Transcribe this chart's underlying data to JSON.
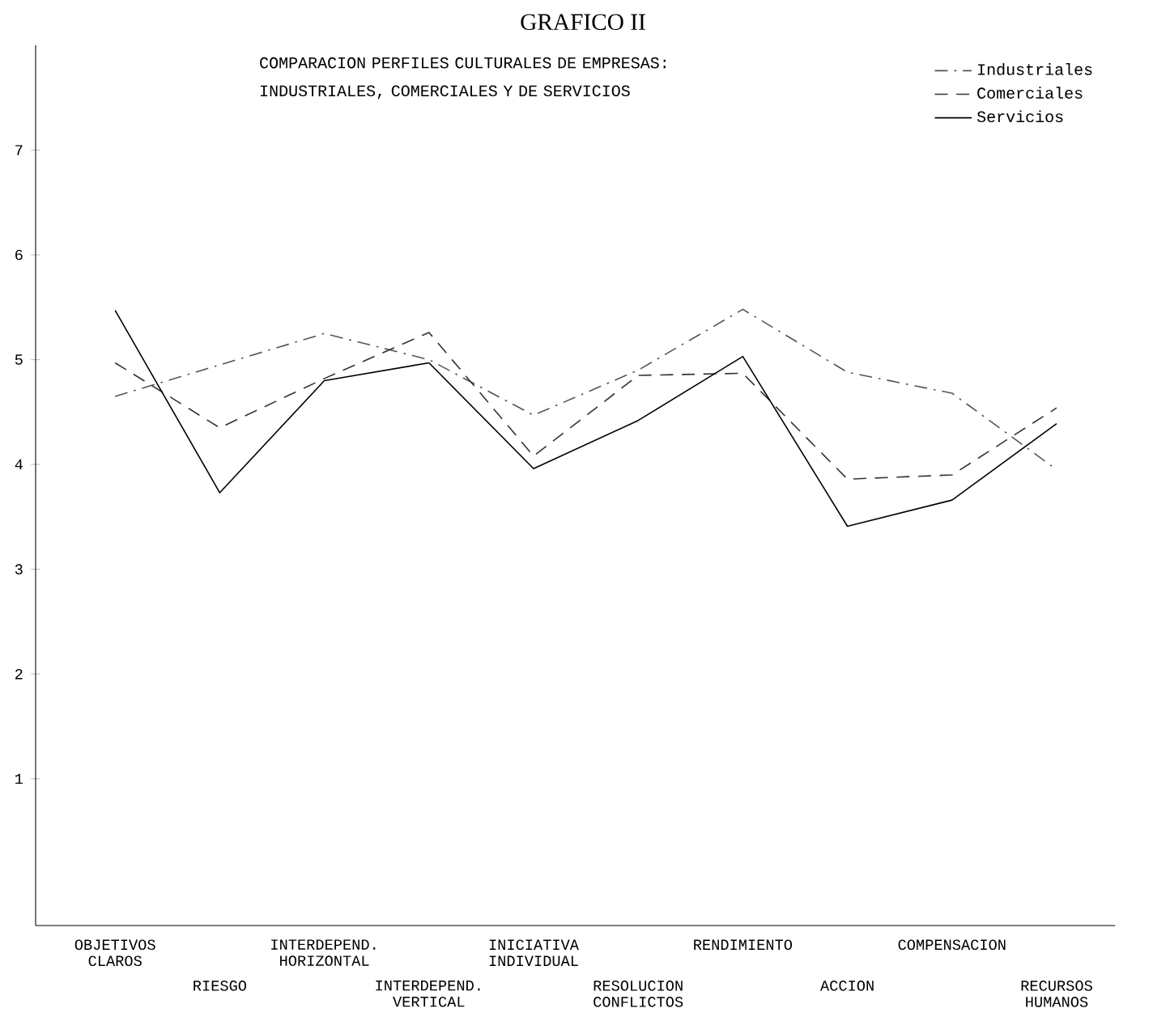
{
  "chart_data": {
    "type": "line",
    "title": "GRAFICO II",
    "subtitle": "COMPARACION PERFILES CULTURALES DE EMPRESAS: INDUSTRIALES, COMERCIALES Y DE SERVICIOS",
    "categories": [
      "OBJETIVOS CLAROS",
      "RIESGO",
      "INTERDEPEND. HORIZONTAL",
      "INTERDEPEND. VERTICAL",
      "INICIATIVA INDIVIDUAL",
      "RESOLUCION CONFLICTOS",
      "RENDIMIENTO",
      "ACCION",
      "COMPENSACION",
      "RECURSOS HUMANOS"
    ],
    "series": [
      {
        "name": "Industriales",
        "color": "#555555",
        "line_style": "dashdot",
        "values": [
          4.65,
          4.95,
          5.25,
          5.0,
          4.47,
          4.9,
          5.48,
          4.88,
          4.68,
          3.95
        ]
      },
      {
        "name": "Comerciales",
        "color": "#333333",
        "line_style": "dashed",
        "values": [
          4.97,
          4.35,
          4.82,
          5.26,
          4.08,
          4.85,
          4.87,
          3.86,
          3.9,
          4.54
        ]
      },
      {
        "name": "Servicios",
        "color": "#000000",
        "line_style": "solid",
        "values": [
          5.47,
          3.73,
          4.8,
          4.97,
          3.96,
          4.42,
          5.03,
          3.41,
          3.66,
          4.39
        ]
      }
    ],
    "ylim": [
      -0.4,
      8.0
    ],
    "yticks": [
      1,
      2,
      3,
      4,
      5,
      6,
      7
    ],
    "grid": false,
    "legend": "top right"
  }
}
